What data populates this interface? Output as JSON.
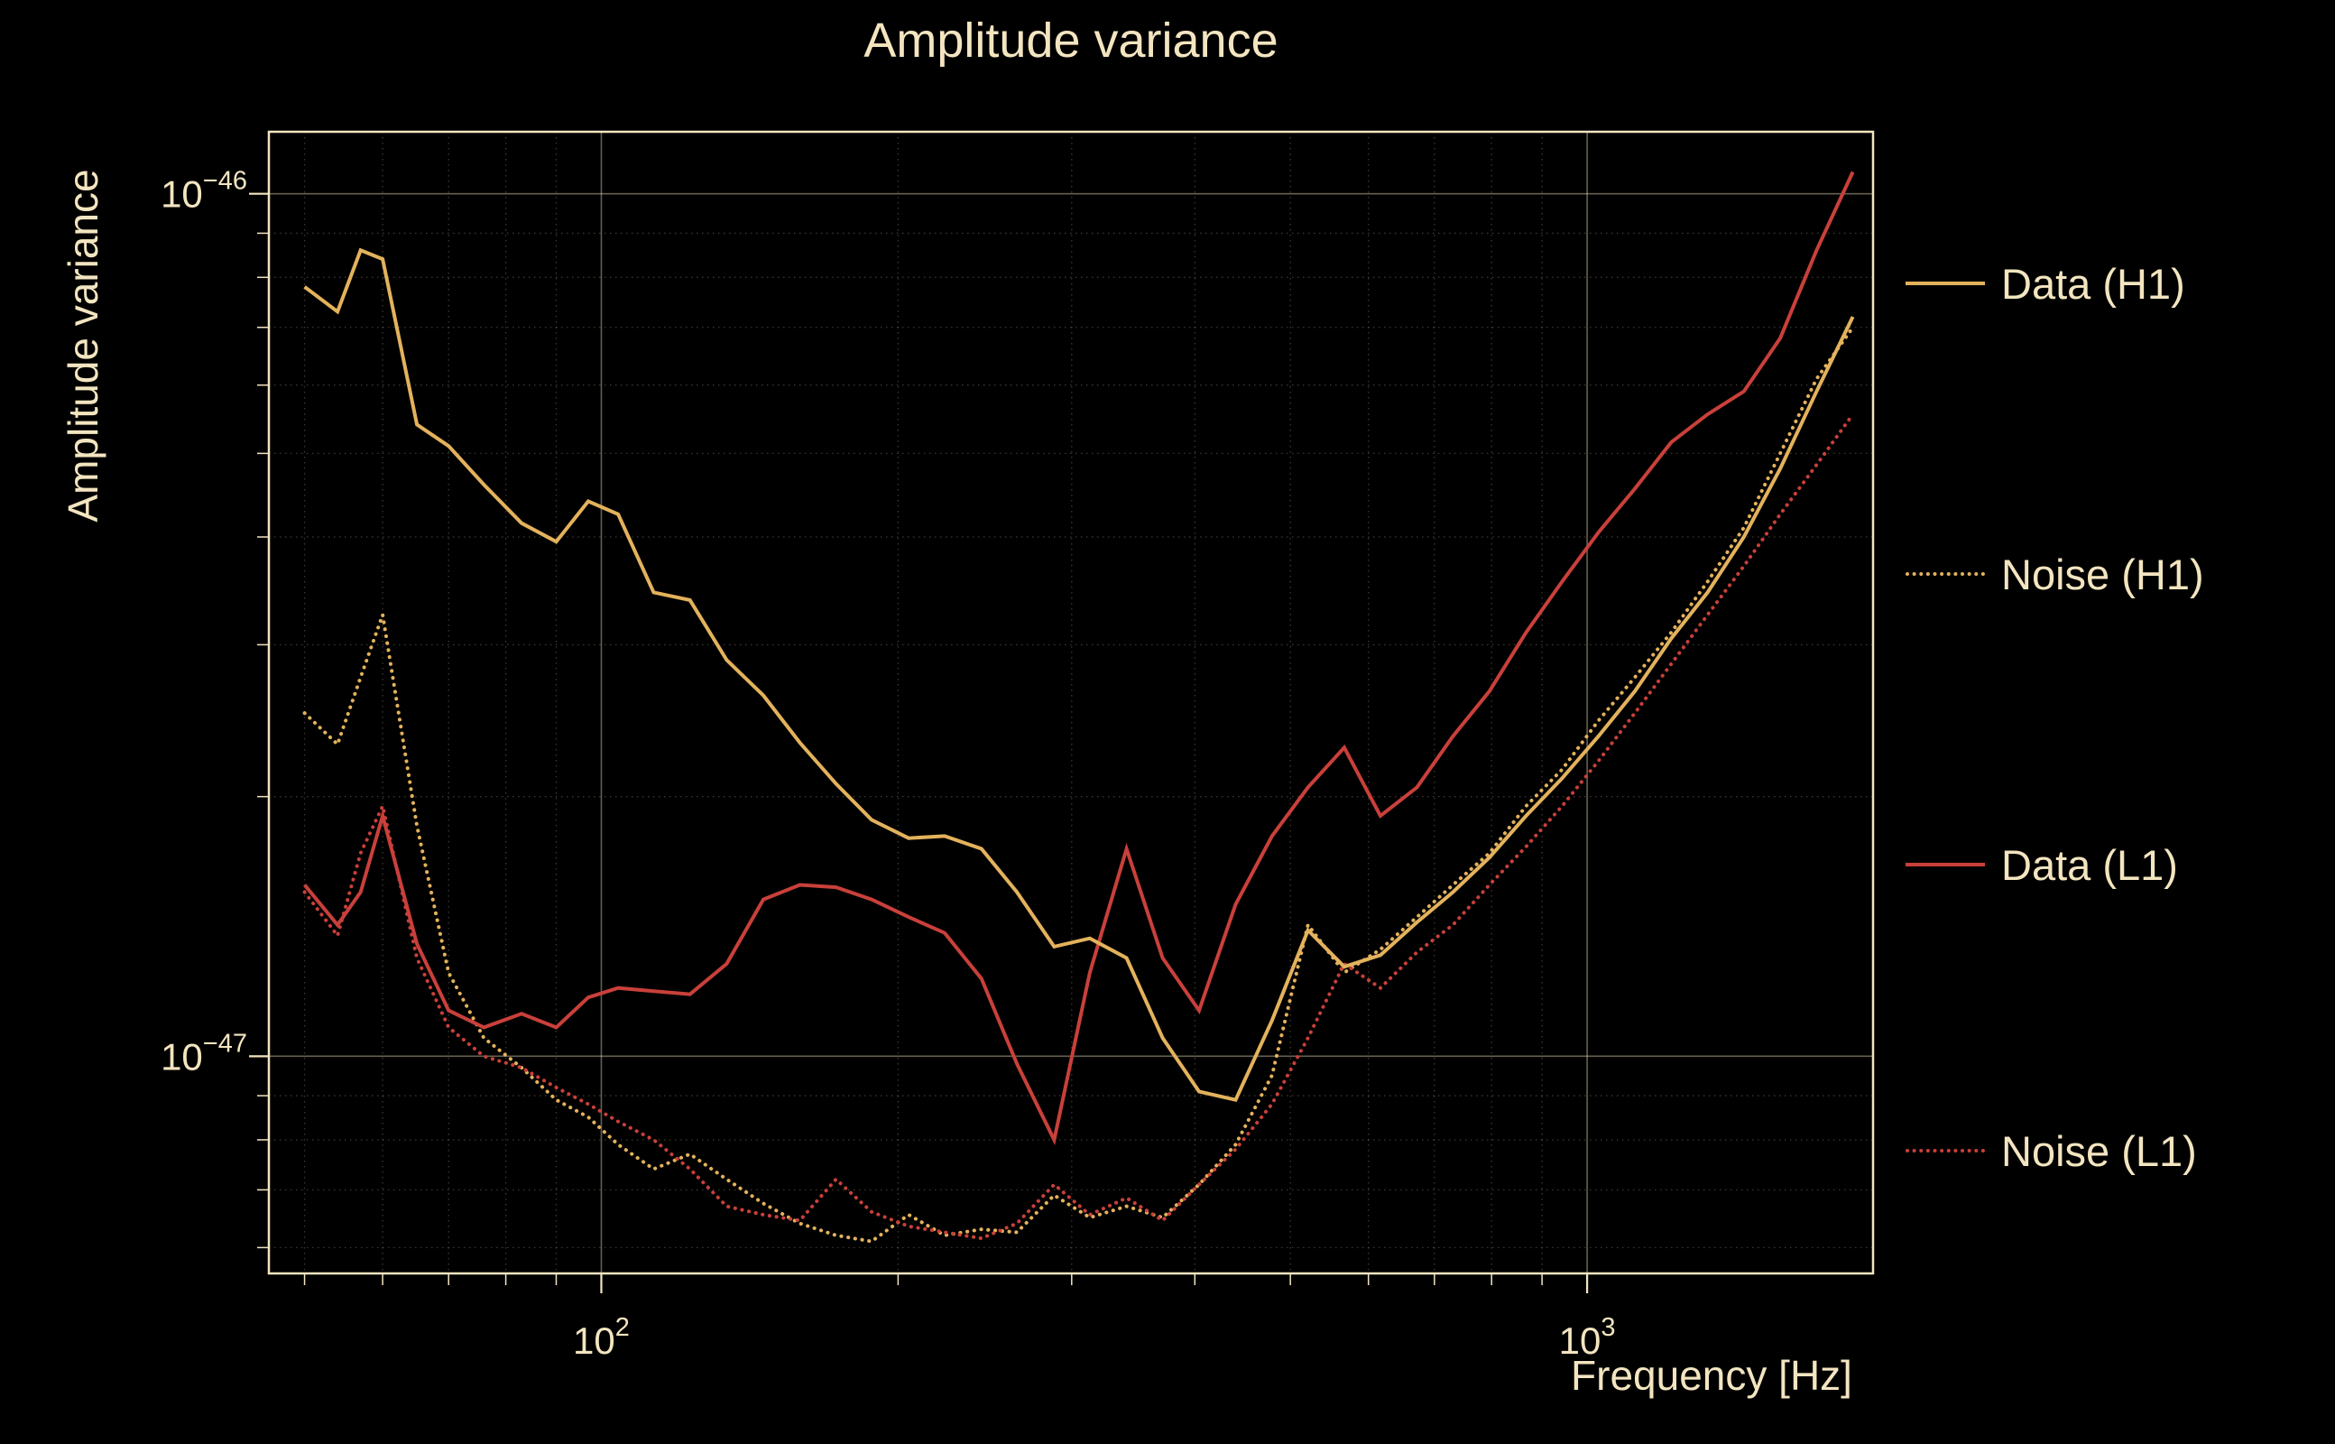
{
  "colors": {
    "background": "#000000",
    "text": "#f3e5c0",
    "frame": "#f3e5c0",
    "gold": "#e3b25c",
    "red": "#c9403a"
  },
  "chart_data": {
    "type": "line",
    "title": "Amplitude variance",
    "xlabel": "Frequency [Hz]",
    "ylabel": "Amplitude variance",
    "x_scale": "log",
    "y_scale": "log",
    "grid": true,
    "legend_position": "right-outside",
    "xlim": [
      46,
      1950
    ],
    "ylim_e47": [
      0.56,
      11.8
    ],
    "value_scale": 1e-47,
    "x": [
      50,
      54,
      57,
      60,
      65,
      70,
      76,
      83,
      90,
      97,
      104,
      113,
      123,
      134,
      146,
      159,
      173,
      188,
      205,
      223,
      243,
      264,
      288,
      313,
      341,
      371,
      404,
      440,
      479,
      521,
      567,
      617,
      672,
      731,
      796,
      867,
      943,
      1027,
      1118,
      1217,
      1325,
      1442,
      1570,
      1709,
      1860
    ],
    "series": [
      {
        "name": "Data (H1)",
        "color_key": "gold",
        "style": "solid",
        "values_e47": [
          7.8,
          7.3,
          8.6,
          8.4,
          5.4,
          5.1,
          4.6,
          4.15,
          3.95,
          4.4,
          4.25,
          3.45,
          3.38,
          2.88,
          2.62,
          2.31,
          2.07,
          1.88,
          1.79,
          1.8,
          1.74,
          1.55,
          1.34,
          1.37,
          1.3,
          1.05,
          0.91,
          0.89,
          1.1,
          1.4,
          1.27,
          1.31,
          1.43,
          1.55,
          1.7,
          1.9,
          2.1,
          2.35,
          2.65,
          3.05,
          3.45,
          4.0,
          4.8,
          5.9,
          7.2
        ]
      },
      {
        "name": "Noise (H1)",
        "color_key": "gold",
        "style": "dotted",
        "values_e47": [
          2.5,
          2.3,
          2.75,
          3.25,
          1.85,
          1.25,
          1.05,
          0.97,
          0.89,
          0.85,
          0.79,
          0.74,
          0.77,
          0.72,
          0.675,
          0.64,
          0.62,
          0.61,
          0.655,
          0.62,
          0.63,
          0.625,
          0.69,
          0.65,
          0.67,
          0.65,
          0.71,
          0.79,
          0.95,
          1.42,
          1.25,
          1.33,
          1.45,
          1.58,
          1.72,
          1.95,
          2.15,
          2.45,
          2.75,
          3.1,
          3.55,
          4.1,
          5.0,
          6.1,
          7.0
        ]
      },
      {
        "name": "Data (L1)",
        "color_key": "red",
        "style": "solid",
        "values_e47": [
          1.58,
          1.42,
          1.55,
          1.9,
          1.35,
          1.13,
          1.08,
          1.12,
          1.08,
          1.17,
          1.2,
          1.19,
          1.18,
          1.28,
          1.52,
          1.58,
          1.57,
          1.52,
          1.45,
          1.39,
          1.23,
          0.98,
          0.8,
          1.25,
          1.74,
          1.3,
          1.13,
          1.5,
          1.8,
          2.05,
          2.28,
          1.9,
          2.05,
          2.35,
          2.65,
          3.1,
          3.55,
          4.05,
          4.55,
          5.15,
          5.55,
          5.9,
          6.8,
          8.6,
          10.6
        ]
      },
      {
        "name": "Noise (L1)",
        "color_key": "red",
        "style": "dotted",
        "values_e47": [
          1.55,
          1.38,
          1.72,
          1.95,
          1.3,
          1.08,
          1.0,
          0.97,
          0.92,
          0.88,
          0.84,
          0.8,
          0.74,
          0.67,
          0.655,
          0.645,
          0.72,
          0.66,
          0.635,
          0.625,
          0.615,
          0.64,
          0.71,
          0.655,
          0.685,
          0.645,
          0.71,
          0.78,
          0.88,
          1.05,
          1.28,
          1.2,
          1.32,
          1.42,
          1.58,
          1.75,
          1.95,
          2.2,
          2.5,
          2.85,
          3.25,
          3.7,
          4.25,
          4.85,
          5.55
        ]
      }
    ],
    "x_ticks": [
      {
        "f": 100,
        "base": "10",
        "exp": "2"
      },
      {
        "f": 1000,
        "base": "10",
        "exp": "3"
      }
    ],
    "y_ticks": [
      {
        "v": 10,
        "base": "10",
        "exp": "−46"
      },
      {
        "v": 1,
        "base": "10",
        "exp": "−47"
      }
    ]
  }
}
